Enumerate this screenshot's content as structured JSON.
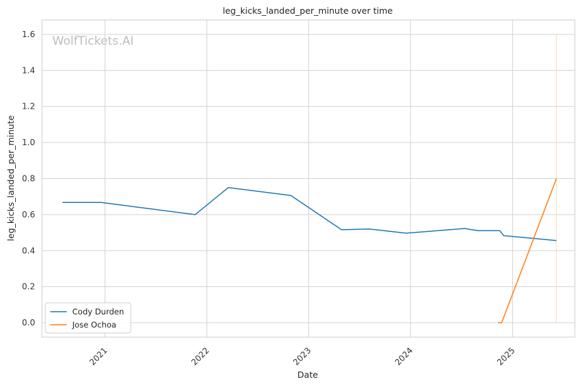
{
  "chart_data": {
    "type": "line",
    "title": "leg_kicks_landed_per_minute over time",
    "xlabel": "Date",
    "ylabel": "leg_kicks_landed_per_minute",
    "watermark": "WolfTickets.AI",
    "xlim": [
      "2020-05-20",
      "2025-08-12"
    ],
    "ylim": [
      -0.08,
      1.68
    ],
    "x_ticks": [
      "2021-01-01",
      "2022-01-01",
      "2023-01-01",
      "2024-01-01",
      "2025-01-01"
    ],
    "x_tick_labels": [
      "2021",
      "2022",
      "2023",
      "2024",
      "2025"
    ],
    "y_ticks": [
      0.0,
      0.2,
      0.4,
      0.6,
      0.8,
      1.0,
      1.2,
      1.4,
      1.6
    ],
    "y_tick_labels": [
      "0.0",
      "0.2",
      "0.4",
      "0.6",
      "0.8",
      "1.0",
      "1.2",
      "1.4",
      "1.6"
    ],
    "grid": true,
    "legend_position": "lower-left",
    "series": [
      {
        "name": "Cody Durden",
        "color": "#1f77b4",
        "points": [
          {
            "x": "2020-08-01",
            "y": 0.667
          },
          {
            "x": "2020-12-19",
            "y": 0.667
          },
          {
            "x": "2021-11-20",
            "y": 0.6
          },
          {
            "x": "2022-03-19",
            "y": 0.75
          },
          {
            "x": "2022-10-29",
            "y": 0.706
          },
          {
            "x": "2023-04-29",
            "y": 0.516
          },
          {
            "x": "2023-08-05",
            "y": 0.52
          },
          {
            "x": "2023-12-16",
            "y": 0.497
          },
          {
            "x": "2024-07-13",
            "y": 0.523
          },
          {
            "x": "2024-08-31",
            "y": 0.511
          },
          {
            "x": "2024-11-16",
            "y": 0.511
          },
          {
            "x": "2024-11-30",
            "y": 0.483
          },
          {
            "x": "2025-06-07",
            "y": 0.456
          }
        ]
      },
      {
        "name": "Jose Ochoa",
        "color": "#ff7f0e",
        "points": [
          {
            "x": "2024-11-09",
            "y": 0.0
          },
          {
            "x": "2024-11-23",
            "y": 0.0
          },
          {
            "x": "2025-06-07",
            "y": 0.8
          }
        ]
      }
    ],
    "vertical_marker": {
      "x": "2025-06-07",
      "y_from": 0.0,
      "y_to": 1.6,
      "color": "#f5deb3"
    }
  }
}
